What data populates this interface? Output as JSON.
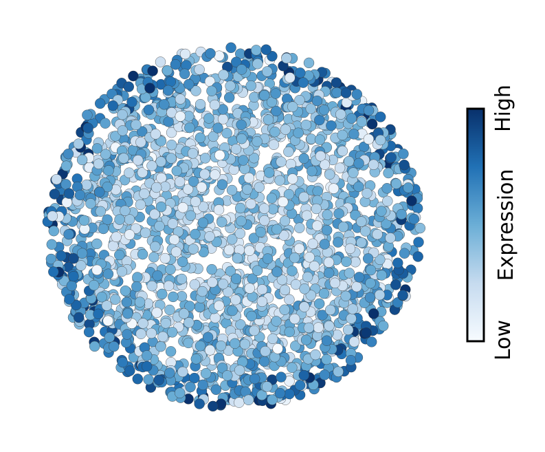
{
  "chart_data": {
    "type": "scatter",
    "title": "",
    "xlabel": "",
    "ylabel": "",
    "grid": false,
    "description_shape": "disc",
    "colorbar": {
      "label": "Expression",
      "low_label": "Low",
      "high_label": "High",
      "colormap": [
        "#f7fbff",
        "#c6dbef",
        "#6baed6",
        "#2171b5",
        "#08306b"
      ],
      "orientation": "vertical",
      "placement": "right"
    },
    "points": {
      "count": 2200,
      "value_range": [
        0,
        1
      ],
      "radial_trend": "higher expression toward the outer edge, lower in the interior"
    }
  }
}
